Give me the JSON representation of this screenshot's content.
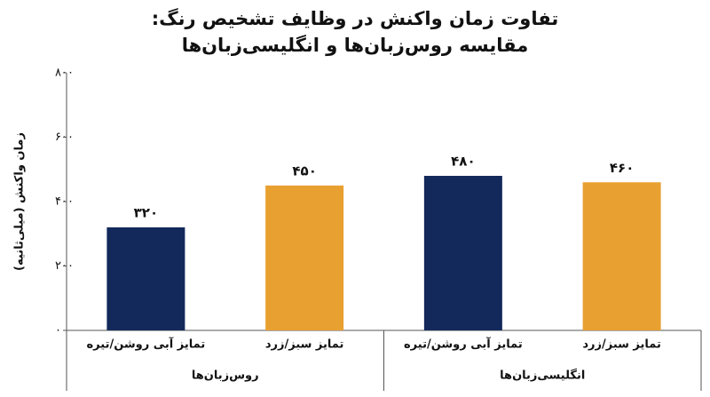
{
  "chart_data": {
    "type": "bar",
    "title": "تفاوت زمان واکنش در وظایف تشخیص رنگ: مقایسه روس‌زبان‌ها و انگلیسی‌زبان‌ها",
    "y_label": "زمان واکنش (میلی‌ثانیه)",
    "categories": [
      "روس‌زبان‌ها",
      "انگلیسی‌زبان‌ها"
    ],
    "series": [
      {
        "name": "تمایز آبی روشن/تیره",
        "color": "#13295b",
        "values": [
          320,
          480
        ],
        "value_labels": [
          "۳۲۰",
          "۴۸۰"
        ]
      },
      {
        "name": "تمایز سبز/زرد",
        "color": "#e8a030",
        "values": [
          450,
          460
        ],
        "value_labels": [
          "۴۵۰",
          "۴۶۰"
        ]
      }
    ],
    "ylim": [
      0,
      800
    ],
    "yticks": [
      {
        "value": 0,
        "label": "۰"
      },
      {
        "value": 200,
        "label": "۲۰۰"
      },
      {
        "value": 400,
        "label": "۴۰۰"
      },
      {
        "value": 600,
        "label": "۶۰۰"
      },
      {
        "value": 800,
        "label": "۸۰۰"
      }
    ],
    "grid": false
  }
}
